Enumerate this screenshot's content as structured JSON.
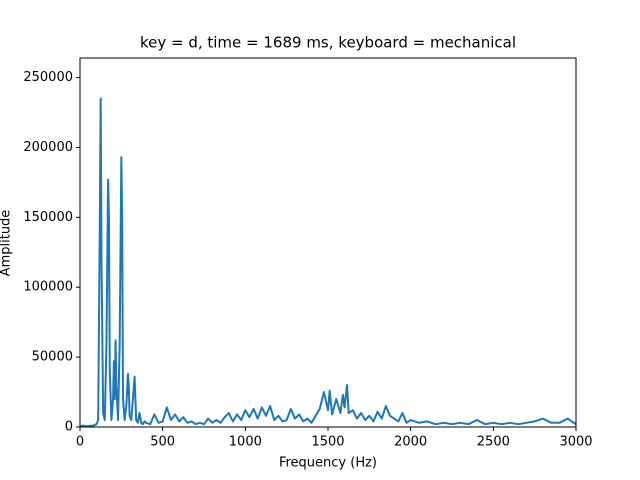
{
  "chart_data": {
    "type": "line",
    "title": "key = d, time = 1689 ms, keyboard = mechanical",
    "xlabel": "Frequency (Hz)",
    "ylabel": "Amplitude",
    "color": "#1f77b4",
    "x": [
      0,
      20,
      40,
      60,
      80,
      100,
      110,
      120,
      125,
      130,
      140,
      150,
      160,
      170,
      175,
      180,
      190,
      200,
      205,
      210,
      215,
      220,
      230,
      240,
      250,
      255,
      260,
      270,
      280,
      290,
      295,
      300,
      310,
      320,
      330,
      335,
      340,
      350,
      360,
      370,
      380,
      390,
      400,
      425,
      450,
      475,
      500,
      525,
      550,
      575,
      600,
      625,
      650,
      675,
      700,
      725,
      750,
      775,
      800,
      825,
      850,
      875,
      900,
      925,
      950,
      975,
      1000,
      1025,
      1050,
      1075,
      1100,
      1125,
      1150,
      1175,
      1200,
      1225,
      1250,
      1275,
      1300,
      1325,
      1350,
      1375,
      1400,
      1425,
      1450,
      1475,
      1500,
      1510,
      1525,
      1550,
      1575,
      1590,
      1600,
      1615,
      1625,
      1650,
      1675,
      1700,
      1725,
      1750,
      1775,
      1800,
      1825,
      1850,
      1875,
      1900,
      1925,
      1950,
      1975,
      2000,
      2050,
      2100,
      2150,
      2200,
      2250,
      2300,
      2350,
      2400,
      2450,
      2500,
      2550,
      2600,
      2650,
      2700,
      2750,
      2800,
      2850,
      2900,
      2950,
      3000
    ],
    "values": [
      500,
      1000,
      500,
      800,
      1000,
      2000,
      5000,
      150000,
      235000,
      120000,
      10000,
      5000,
      60000,
      177000,
      150000,
      40000,
      5000,
      20000,
      47000,
      20000,
      62000,
      30000,
      5000,
      60000,
      193000,
      150000,
      20000,
      5000,
      15000,
      38000,
      30000,
      8000,
      5000,
      20000,
      36000,
      20000,
      5000,
      3000,
      10000,
      3000,
      2000,
      4000,
      3000,
      2000,
      9000,
      3000,
      4000,
      14000,
      5000,
      9000,
      4000,
      7000,
      3000,
      4000,
      2000,
      3000,
      2000,
      6000,
      3000,
      5000,
      3000,
      7000,
      10000,
      4000,
      9000,
      5000,
      12000,
      7000,
      13000,
      6000,
      14000,
      8000,
      15000,
      5000,
      8000,
      4000,
      5000,
      13000,
      6000,
      9000,
      4000,
      6000,
      3000,
      8000,
      13000,
      25000,
      12000,
      26000,
      9000,
      20000,
      10000,
      23000,
      14000,
      30000,
      10000,
      12000,
      6000,
      10000,
      5000,
      8000,
      4000,
      11000,
      6000,
      15000,
      8000,
      6000,
      4000,
      10000,
      3000,
      5000,
      3000,
      4000,
      2000,
      3000,
      2000,
      3000,
      2000,
      5000,
      2000,
      3000,
      2000,
      3000,
      2000,
      3000,
      4000,
      6000,
      3000,
      3000,
      6000,
      2000
    ],
    "xlim": [
      0,
      3000
    ],
    "ylim": [
      0,
      264000
    ],
    "xticks": [
      0,
      500,
      1000,
      1500,
      2000,
      2500,
      3000
    ],
    "yticks": [
      0,
      50000,
      100000,
      150000,
      200000,
      250000
    ]
  }
}
